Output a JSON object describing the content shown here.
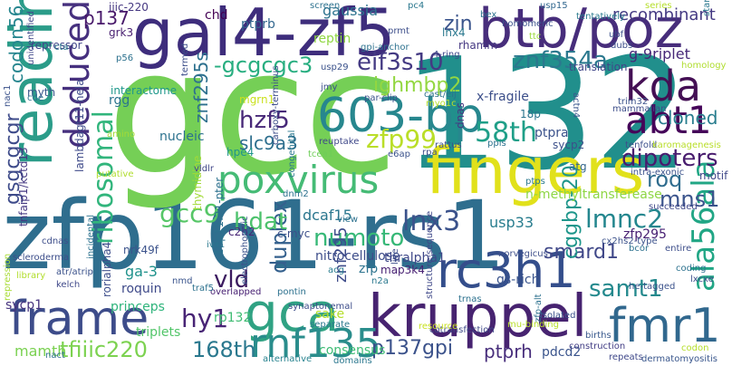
{
  "words": [
    {
      "text": "zfp161-rs1",
      "color": "#2f6e8e"
    },
    {
      "text": "gcc",
      "color": "#75cf56"
    },
    {
      "text": "132",
      "color": "#218f8c"
    },
    {
      "text": "gal4-zf5",
      "color": "#3e2d7c"
    },
    {
      "text": "btb/poz",
      "color": "#472d7b"
    },
    {
      "text": "fingers",
      "color": "#e1e11b"
    },
    {
      "text": "reading",
      "color": "#2b9c89"
    },
    {
      "text": "kruppel",
      "color": "#472370"
    },
    {
      "text": "603-bp",
      "color": "#27878e"
    },
    {
      "text": "frame",
      "color": "#3d4c8a"
    },
    {
      "text": "gca",
      "color": "#30a283"
    },
    {
      "text": "rc3h1",
      "color": "#344e8b"
    },
    {
      "text": "rnf135",
      "color": "#2a8d8c"
    },
    {
      "text": "fmr1",
      "color": "#31688e"
    },
    {
      "text": "poxvirus",
      "color": "#45bb75"
    },
    {
      "text": "kda",
      "color": "#440f54"
    },
    {
      "text": "abt1",
      "color": "#450559"
    },
    {
      "text": "deduced",
      "color": "#46307e"
    },
    {
      "text": "ribosomal",
      "color": "#31b57c"
    },
    {
      "text": "ala56ala",
      "color": "#21a685"
    },
    {
      "text": "tfiiic220",
      "color": "#7cd250"
    },
    {
      "text": "gsgcgcgr",
      "color": "#3e4b8a"
    },
    {
      "text": "duplex",
      "color": "#34608d"
    },
    {
      "text": "58th",
      "color": "#1f9f88"
    },
    {
      "text": "zfp99",
      "color": "#bade28"
    },
    {
      "text": "eif3s10",
      "color": "#443a83"
    },
    {
      "text": "znf354a",
      "color": "#2b788e"
    },
    {
      "text": "lnx3",
      "color": "#3b528b"
    },
    {
      "text": "numoto",
      "color": "#36b877"
    },
    {
      "text": "lmnc2",
      "color": "#24868e"
    },
    {
      "text": "samt1",
      "color": "#24898d"
    },
    {
      "text": "hy1",
      "color": "#482475"
    },
    {
      "text": "vld",
      "color": "#3b1a5f"
    },
    {
      "text": "mns1",
      "color": "#3b548c"
    },
    {
      "text": "dipoters",
      "color": "#481c6e"
    },
    {
      "text": "roq",
      "color": "#2f6c8e"
    },
    {
      "text": "cloned",
      "color": "#287d8e"
    },
    {
      "text": "hdat",
      "color": "#4cc26c"
    },
    {
      "text": "gcc9",
      "color": "#56c667"
    },
    {
      "text": "hzf5",
      "color": "#472878"
    },
    {
      "text": "ighmbp2",
      "color": "#93d741"
    },
    {
      "text": "-gcgcgc3",
      "color": "#28ae80"
    },
    {
      "text": "p137gpi",
      "color": "#3b528b"
    },
    {
      "text": "168th",
      "color": "#2a788e"
    },
    {
      "text": "ptprh",
      "color": "#472d7b"
    },
    {
      "text": "smard1",
      "color": "#3f4788"
    },
    {
      "text": "cggbp-20",
      "color": "#1f968b"
    },
    {
      "text": "znf295",
      "color": "#3e4c8a"
    },
    {
      "text": "zin",
      "color": "#3a548c"
    },
    {
      "text": "codon56",
      "color": "#25858e"
    },
    {
      "text": "p137",
      "color": "#48186a"
    },
    {
      "text": "ptprb",
      "color": "#31668e"
    },
    {
      "text": "chd",
      "color": "#440154"
    },
    {
      "text": "gaussia",
      "color": "#2c728e"
    },
    {
      "text": "recombinant",
      "color": "#443a83"
    },
    {
      "text": "reptin",
      "color": "#90d743"
    },
    {
      "text": "znf295s",
      "color": "#2d708e"
    },
    {
      "text": "slc9a3",
      "color": "#2e6f8e"
    },
    {
      "text": "usp33",
      "color": "#287d8e"
    },
    {
      "text": "dcaf15",
      "color": "#2a768e"
    },
    {
      "text": "ga-3",
      "color": "#20928c"
    },
    {
      "text": "princeps",
      "color": "#2fb47c"
    },
    {
      "text": "mamth",
      "color": "#7ad151"
    },
    {
      "text": "consensus",
      "color": "#3dbc74"
    },
    {
      "text": "g-9riplet",
      "color": "#472878"
    },
    {
      "text": "translation",
      "color": "#404688"
    },
    {
      "text": "zfp",
      "color": "#2c738e"
    },
    {
      "text": "nitrocellulose",
      "color": "#3d4d8a"
    },
    {
      "text": "thralpha1",
      "color": "#3f4889"
    },
    {
      "text": "map3k4",
      "color": "#482173"
    },
    {
      "text": "rp132",
      "color": "#3fbc73"
    },
    {
      "text": "triplets",
      "color": "#52c569"
    },
    {
      "text": "roquin",
      "color": "#3e4989"
    },
    {
      "text": "sycp1",
      "color": "#46337e"
    },
    {
      "text": "pdcd2",
      "color": "#3a548c"
    },
    {
      "text": "ptpra",
      "color": "#3b528b"
    },
    {
      "text": "nucleic",
      "color": "#2c728e"
    },
    {
      "text": "rgg",
      "color": "#2b748e"
    },
    {
      "text": "n-methyltransferease",
      "color": "#8ed645"
    },
    {
      "text": "x-fragile",
      "color": "#3c4f8a"
    },
    {
      "text": "myth",
      "color": "#39568c"
    },
    {
      "text": "interactome",
      "color": "#1f988b"
    },
    {
      "text": "repressor",
      "color": "#404588"
    },
    {
      "text": "mgrn1",
      "color": "#cae11f"
    },
    {
      "text": "c-myc",
      "color": "#3c4f8a"
    },
    {
      "text": "c2h2",
      "color": "#482677"
    },
    {
      "text": "hpe4",
      "color": "#1f958b"
    },
    {
      "text": "ttc",
      "color": "#9bd93c"
    },
    {
      "text": "iiic-220",
      "color": "#453781"
    },
    {
      "text": "grk3",
      "color": "#481f70"
    },
    {
      "text": "alternative",
      "color": "#26828e"
    },
    {
      "text": "cotransfection",
      "color": "#3e4989"
    },
    {
      "text": "synaptonemal",
      "color": "#3d4d8a"
    },
    {
      "text": "overlapped",
      "color": "#482173"
    },
    {
      "text": "pontin",
      "color": "#2c718e"
    },
    {
      "text": "acg",
      "color": "#287c8e"
    },
    {
      "text": "structure-sequence",
      "color": "#3f4889"
    },
    {
      "text": "gs-rich",
      "color": "#3a548c"
    },
    {
      "text": "ribosomal-alt",
      "color": "#3b528b"
    },
    {
      "text": "usp15",
      "color": "#31678e"
    },
    {
      "text": "screen",
      "color": "#2c718e"
    },
    {
      "text": "pc4",
      "color": "#2a778e"
    },
    {
      "text": "homomeric",
      "color": "#3b518b"
    },
    {
      "text": "series",
      "color": "#b5de2b"
    },
    {
      "text": "tentatively",
      "color": "#297a8e"
    },
    {
      "text": "jmy",
      "color": "#3c508b"
    },
    {
      "text": "tcea1",
      "color": "#6ece58"
    },
    {
      "text": "cdnas",
      "color": "#3d4e8a"
    },
    {
      "text": "thymidine",
      "color": "#a2da37"
    },
    {
      "text": "dnm2",
      "color": "#2c718e"
    },
    {
      "text": "18p",
      "color": "#2b748e"
    },
    {
      "text": "dnas",
      "color": "#453882"
    },
    {
      "text": "atg",
      "color": "#32658e"
    },
    {
      "text": "sycp2",
      "color": "#3c4f8a"
    },
    {
      "text": "actn4",
      "color": "#39568c"
    },
    {
      "text": "motif",
      "color": "#3f4889"
    },
    {
      "text": "tenfold",
      "color": "#3c4f8a"
    },
    {
      "text": "incidental",
      "color": "#2c718e"
    },
    {
      "text": "putative",
      "color": "#b0dd2f"
    },
    {
      "text": "amino",
      "color": "#a5db36"
    },
    {
      "text": "nrk49f",
      "color": "#3b528b"
    },
    {
      "text": "vldlr",
      "color": "#404688"
    },
    {
      "text": "ptps",
      "color": "#2a788e"
    },
    {
      "text": "succeeded",
      "color": "#3f4788"
    },
    {
      "text": "entire",
      "color": "#3d4e8a"
    },
    {
      "text": "coding",
      "color": "#2c718e"
    },
    {
      "text": "births",
      "color": "#38588c"
    },
    {
      "text": "construction",
      "color": "#433e85"
    },
    {
      "text": "repeats",
      "color": "#3f4889"
    },
    {
      "text": "dermatomyositis",
      "color": "#39568c"
    },
    {
      "text": "domains",
      "color": "#2a778e"
    },
    {
      "text": "resource",
      "color": "#c8e020"
    },
    {
      "text": "isolated",
      "color": "#3b528b"
    },
    {
      "text": "mu-binding",
      "color": "#b8de29"
    },
    {
      "text": "trnas",
      "color": "#2c718e"
    },
    {
      "text": "norvegicus",
      "color": "#3d4e8a"
    },
    {
      "text": "rattus",
      "color": "#3c508b"
    },
    {
      "text": "congenital",
      "color": "#2a778e"
    },
    {
      "text": "view",
      "color": "#2c718e"
    },
    {
      "text": "electrophoretic",
      "color": "#3b528b"
    },
    {
      "text": "traf5",
      "color": "#2c718e"
    },
    {
      "text": "nmd",
      "color": "#3a548c"
    },
    {
      "text": "ivs1",
      "color": "#2a788e"
    },
    {
      "text": "kelch",
      "color": "#3f4889"
    },
    {
      "text": "atr/atrip",
      "color": "#3b528b"
    },
    {
      "text": "library",
      "color": "#b2dd2d"
    },
    {
      "text": "scleroderma",
      "color": "#3d4e8a"
    },
    {
      "text": "repression",
      "color": "#a8db34"
    },
    {
      "text": "18p11.21-pter",
      "color": "#2c718e"
    },
    {
      "text": "tnfaip1/kctd13",
      "color": "#453882"
    },
    {
      "text": "lambdagt11-hela",
      "color": "#3e4a89"
    },
    {
      "text": "rorialpha4",
      "color": "#3d4d8a"
    },
    {
      "text": "carboxy-terminus",
      "color": "#3d4d8a"
    },
    {
      "text": "intra-exonic",
      "color": "#3b528b"
    },
    {
      "text": "intra-exonic-2",
      "color": "#3b528b"
    },
    {
      "text": "unidentified",
      "color": "#3f4889"
    },
    {
      "text": "nac1",
      "color": "#3b528b"
    },
    {
      "text": "cde",
      "color": "#2c718e"
    },
    {
      "text": "cta",
      "color": "#2a788e"
    },
    {
      "text": "p56",
      "color": "#2c718e"
    },
    {
      "text": "termed",
      "color": "#3d4e8a"
    },
    {
      "text": "myo1c",
      "color": "#b8de29"
    },
    {
      "text": "lnx4",
      "color": "#2a788e"
    },
    {
      "text": "rhamm",
      "color": "#453882"
    },
    {
      "text": "ubf",
      "color": "#3c508b"
    },
    {
      "text": "dubs",
      "color": "#3d4e8a"
    },
    {
      "text": "usp29",
      "color": "#3b528b"
    },
    {
      "text": "gpi-anchor",
      "color": "#2c718e"
    },
    {
      "text": "4-ring",
      "color": "#3f4889"
    },
    {
      "text": "prmt",
      "color": "#3d4e8a"
    },
    {
      "text": "bex",
      "color": "#2c718e"
    },
    {
      "text": "start",
      "color": "#2a788e"
    },
    {
      "text": "homology",
      "color": "#b0dd2f"
    },
    {
      "text": "trim32",
      "color": "#3b528b"
    },
    {
      "text": "mammalian",
      "color": "#3d4e8a"
    },
    {
      "text": "cast/eij",
      "color": "#2c718e"
    },
    {
      "text": "reuptake",
      "color": "#3f4889"
    },
    {
      "text": "ppis",
      "color": "#2c718e"
    },
    {
      "text": "e6ap",
      "color": "#3b528b"
    },
    {
      "text": "rpa",
      "color": "#3d4e8a"
    },
    {
      "text": "karomagenesis",
      "color": "#b8de29"
    },
    {
      "text": "separate",
      "color": "#2a788e"
    },
    {
      "text": "sake",
      "color": "#b5de2b"
    },
    {
      "text": "zfp295",
      "color": "#482173"
    },
    {
      "text": "sv40",
      "color": "#3d4e8a"
    },
    {
      "text": "rps",
      "color": "#2c718e"
    },
    {
      "text": "pok",
      "color": "#3b528b"
    },
    {
      "text": "lxcxe",
      "color": "#3d4e8a"
    },
    {
      "text": "bcor",
      "color": "#2c718e"
    },
    {
      "text": "cx2hs2-type",
      "color": "#3b528b"
    },
    {
      "text": "live",
      "color": "#3d4e8a"
    },
    {
      "text": "n2a",
      "color": "#2a788e"
    },
    {
      "text": "codon",
      "color": "#b5de2b"
    },
    {
      "text": "he-tagged",
      "color": "#3b528b"
    },
    {
      "text": "zfp-alt",
      "color": "#2c718e"
    },
    {
      "text": "gfp",
      "color": "#3d4e8a"
    },
    {
      "text": "nact",
      "color": "#2c718e"
    },
    {
      "text": "thralpha",
      "color": "#3b528b"
    },
    {
      "text": "dot",
      "color": "#2c718e"
    },
    {
      "text": "mtai",
      "color": "#3d4e8a"
    },
    {
      "text": "mutant",
      "color": "#b0dd2f"
    },
    {
      "text": "par-clip",
      "color": "#3b528b"
    }
  ]
}
